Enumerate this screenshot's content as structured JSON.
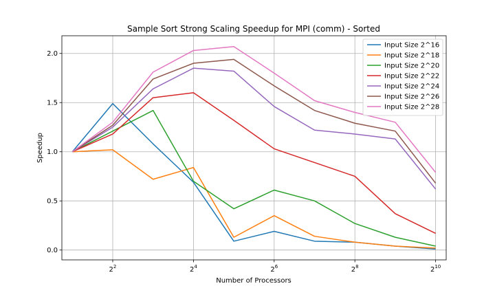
{
  "chart_data": {
    "type": "line",
    "title": "Sample Sort Strong Scaling Speedup for MPI (comm) - Sorted",
    "xlabel": "Number of Processors",
    "ylabel": "Speedup",
    "x_scale": "log2",
    "x": [
      2,
      4,
      8,
      16,
      32,
      64,
      128,
      256,
      512,
      1024
    ],
    "xlim": [
      1.67,
      1228
    ],
    "ylim": [
      -0.1,
      2.18
    ],
    "x_ticks": [
      {
        "value": 4,
        "base": "2",
        "exp": "2"
      },
      {
        "value": 16,
        "base": "2",
        "exp": "4"
      },
      {
        "value": 64,
        "base": "2",
        "exp": "6"
      },
      {
        "value": 256,
        "base": "2",
        "exp": "8"
      },
      {
        "value": 1024,
        "base": "2",
        "exp": "10"
      }
    ],
    "y_ticks": [
      {
        "value": 0.0,
        "label": "0.0"
      },
      {
        "value": 0.5,
        "label": "0.5"
      },
      {
        "value": 1.0,
        "label": "1.0"
      },
      {
        "value": 1.5,
        "label": "1.5"
      },
      {
        "value": 2.0,
        "label": "2.0"
      }
    ],
    "grid": true,
    "legend_position": "top-right",
    "series": [
      {
        "name": "Input Size 2^16",
        "color": "#1f77b4",
        "values": [
          1.0,
          1.49,
          1.08,
          0.69,
          0.09,
          0.19,
          0.09,
          0.08,
          0.04,
          0.01
        ]
      },
      {
        "name": "Input Size 2^18",
        "color": "#ff7f0e",
        "values": [
          1.0,
          1.02,
          0.72,
          0.84,
          0.13,
          0.35,
          0.14,
          0.08,
          0.04,
          0.02
        ]
      },
      {
        "name": "Input Size 2^20",
        "color": "#2ca02c",
        "values": [
          1.0,
          1.21,
          1.42,
          0.7,
          0.42,
          0.61,
          0.5,
          0.27,
          0.13,
          0.04
        ]
      },
      {
        "name": "Input Size 2^22",
        "color": "#d62728",
        "values": [
          1.0,
          1.18,
          1.55,
          1.6,
          1.32,
          1.03,
          0.89,
          0.75,
          0.37,
          0.17
        ]
      },
      {
        "name": "Input Size 2^24",
        "color": "#9467bd",
        "values": [
          1.0,
          1.25,
          1.64,
          1.85,
          1.82,
          1.46,
          1.22,
          1.18,
          1.13,
          0.62
        ]
      },
      {
        "name": "Input Size 2^26",
        "color": "#8c564b",
        "values": [
          1.0,
          1.27,
          1.74,
          1.9,
          1.94,
          1.67,
          1.42,
          1.29,
          1.21,
          0.68
        ]
      },
      {
        "name": "Input Size 2^28",
        "color": "#e377c2",
        "values": [
          1.0,
          1.3,
          1.81,
          2.03,
          2.07,
          1.8,
          1.52,
          1.4,
          1.3,
          0.79
        ]
      }
    ]
  }
}
